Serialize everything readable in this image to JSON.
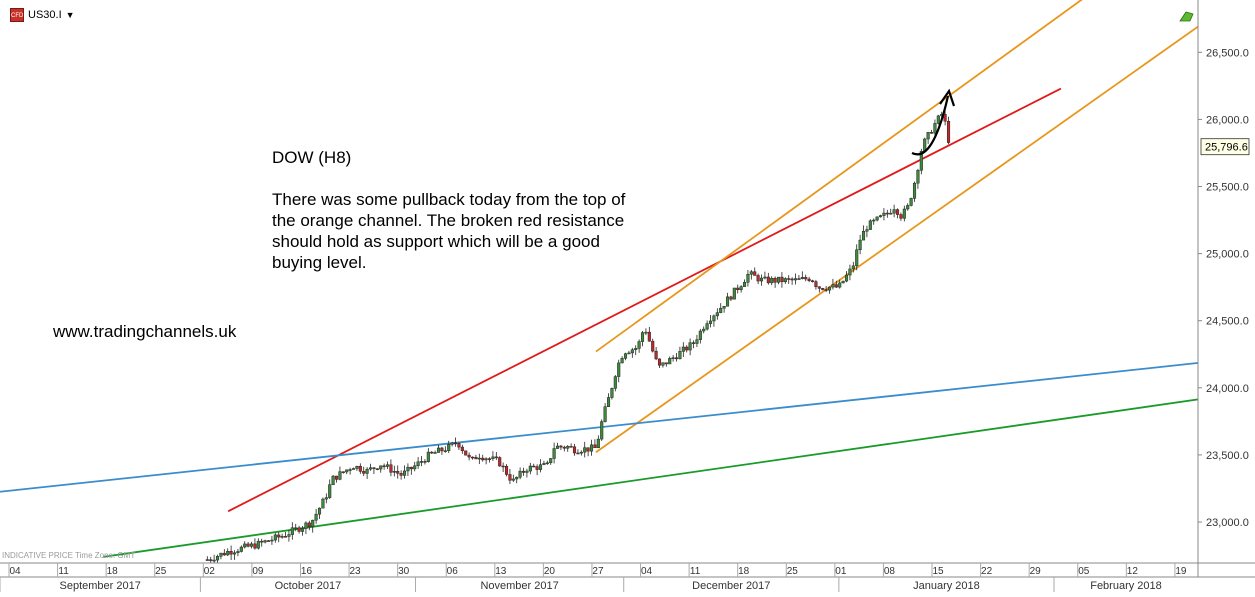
{
  "symbol": {
    "name": "US30.I",
    "icon": "cfd-icon",
    "caret": "▼"
  },
  "annotation": {
    "title": "DOW (H8)",
    "body": "There was some pullback today from the top of\nthe orange channel. The broken red resistance\nshould hold as support which will be a good\nbuying level."
  },
  "website": "www.tradingchannels.uk",
  "footer_note": "INDICATIVE PRICE   Time Zone: GMT",
  "colors": {
    "up_candle": "#3d8a3d",
    "down_candle": "#c0282a",
    "red_line": "#e01a1a",
    "orange_line": "#e8961c",
    "blue_line": "#3a8ccc",
    "green_line": "#199b2a"
  },
  "chart_data": {
    "type": "candlestick",
    "timeframe": "H8",
    "ylim": [
      22750,
      26850
    ],
    "y_ticks": [
      "23,000.0",
      "23,500.0",
      "24,000.0",
      "24,500.0",
      "25,000.0",
      "25,500.0",
      "26,000.0",
      "26,500.0"
    ],
    "y_tick_values": [
      23000,
      23500,
      24000,
      24500,
      25000,
      25500,
      26000,
      26500
    ],
    "current_price": "25,796.6",
    "x_day_labels": [
      "04",
      "11",
      "18",
      "25",
      "02",
      "09",
      "16",
      "23",
      "30",
      "06",
      "13",
      "20",
      "27",
      "04",
      "11",
      "18",
      "25",
      "01",
      "08",
      "15",
      "22",
      "29",
      "05",
      "12",
      "19"
    ],
    "x_month_labels": [
      "September 2017",
      "October 2017",
      "November 2017",
      "December 2017",
      "January 2018",
      "February 2018"
    ],
    "price_path": [
      [
        "2017-10-02",
        22720
      ],
      [
        "2017-10-05",
        22780
      ],
      [
        "2017-10-09",
        22830
      ],
      [
        "2017-10-13",
        22900
      ],
      [
        "2017-10-17",
        23000
      ],
      [
        "2017-10-19",
        23180
      ],
      [
        "2017-10-20",
        23320
      ],
      [
        "2017-10-23",
        23420
      ],
      [
        "2017-10-25",
        23380
      ],
      [
        "2017-10-27",
        23430
      ],
      [
        "2017-10-30",
        23350
      ],
      [
        "2017-11-01",
        23420
      ],
      [
        "2017-11-03",
        23500
      ],
      [
        "2017-11-06",
        23560
      ],
      [
        "2017-11-07",
        23600
      ],
      [
        "2017-11-09",
        23450
      ],
      [
        "2017-11-10",
        23500
      ],
      [
        "2017-11-13",
        23450
      ],
      [
        "2017-11-15",
        23300
      ],
      [
        "2017-11-17",
        23400
      ],
      [
        "2017-11-20",
        23420
      ],
      [
        "2017-11-21",
        23560
      ],
      [
        "2017-11-23",
        23560
      ],
      [
        "2017-11-24",
        23540
      ],
      [
        "2017-11-27",
        23550
      ],
      [
        "2017-11-28",
        23780
      ],
      [
        "2017-11-29",
        23950
      ],
      [
        "2017-11-30",
        24150
      ],
      [
        "2017-12-01",
        24270
      ],
      [
        "2017-12-03",
        24300
      ],
      [
        "2017-12-04",
        24460
      ],
      [
        "2017-12-05",
        24300
      ],
      [
        "2017-12-06",
        24150
      ],
      [
        "2017-12-08",
        24220
      ],
      [
        "2017-12-11",
        24330
      ],
      [
        "2017-12-13",
        24500
      ],
      [
        "2017-12-15",
        24600
      ],
      [
        "2017-12-18",
        24780
      ],
      [
        "2017-12-19",
        24850
      ],
      [
        "2017-12-21",
        24800
      ],
      [
        "2017-12-26",
        24800
      ],
      [
        "2017-12-28",
        24820
      ],
      [
        "2017-12-29",
        24750
      ],
      [
        "2018-01-01",
        24750
      ],
      [
        "2018-01-03",
        24900
      ],
      [
        "2018-01-04",
        25100
      ],
      [
        "2018-01-05",
        25200
      ],
      [
        "2018-01-08",
        25300
      ],
      [
        "2018-01-09",
        25350
      ],
      [
        "2018-01-10",
        25280
      ],
      [
        "2018-01-11",
        25350
      ],
      [
        "2018-01-12",
        25550
      ],
      [
        "2018-01-13",
        25800
      ],
      [
        "2018-01-15",
        25980
      ],
      [
        "2018-01-16",
        26050
      ],
      [
        "2018-01-17",
        25800
      ]
    ],
    "trendlines": [
      {
        "color": "red",
        "from": [
          "2017-10-05",
          23080
        ],
        "to": [
          "2018-02-02",
          26230
        ]
      },
      {
        "color": "orange",
        "from": [
          "2017-11-27",
          24270
        ],
        "to": [
          "2018-02-06",
          26930
        ]
      },
      {
        "color": "orange",
        "from": [
          "2017-11-27",
          23520
        ],
        "to": [
          "2018-02-25",
          26810
        ]
      },
      {
        "color": "blue",
        "from": [
          "2017-08-25",
          23180
        ],
        "to": [
          "2018-02-28",
          24220
        ]
      },
      {
        "color": "green",
        "from": [
          "2017-09-17",
          22740
        ],
        "to": [
          "2018-02-28",
          23960
        ]
      }
    ],
    "grid": false
  }
}
